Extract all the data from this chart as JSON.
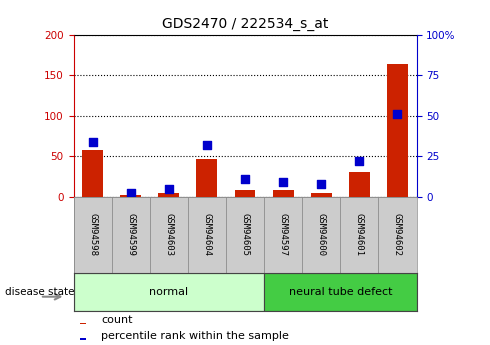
{
  "title": "GDS2470 / 222534_s_at",
  "samples": [
    "GSM94598",
    "GSM94599",
    "GSM94603",
    "GSM94604",
    "GSM94605",
    "GSM94597",
    "GSM94600",
    "GSM94601",
    "GSM94602"
  ],
  "counts": [
    57,
    2,
    5,
    47,
    8,
    8,
    5,
    30,
    163
  ],
  "percentiles": [
    34,
    2,
    5,
    32,
    11,
    9,
    8,
    22,
    51
  ],
  "groups": [
    {
      "label": "normal",
      "start": 0,
      "end": 5,
      "color": "#ccffcc"
    },
    {
      "label": "neural tube defect",
      "start": 5,
      "end": 9,
      "color": "#44cc44"
    }
  ],
  "ylim_left": [
    0,
    200
  ],
  "ylim_right": [
    0,
    100
  ],
  "yticks_left": [
    0,
    50,
    100,
    150,
    200
  ],
  "yticks_right": [
    0,
    25,
    50,
    75,
    100
  ],
  "bar_color": "#cc2200",
  "dot_color": "#0000cc",
  "bar_width": 0.55,
  "dot_size": 28,
  "left_axis_color": "#cc0000",
  "right_axis_color": "#0000cc",
  "plot_bg_color": "#ffffff",
  "label_bg_color": "#cccccc",
  "legend_count_label": "count",
  "legend_pct_label": "percentile rank within the sample",
  "disease_state_label": "disease state",
  "grid_color": "#000000"
}
